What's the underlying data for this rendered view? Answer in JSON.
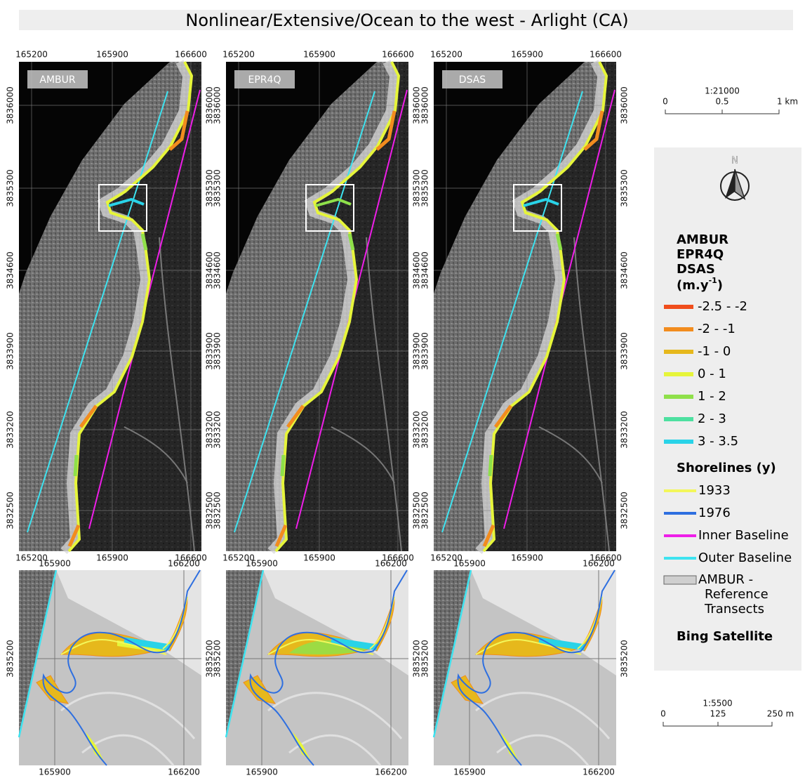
{
  "title": "Nonlinear/Extensive/Ocean to the west - Arlight (CA)",
  "panels": [
    {
      "label": "AMBUR"
    },
    {
      "label": "EPR4Q"
    },
    {
      "label": "DSAS"
    }
  ],
  "overview_axes": {
    "x_ticks": [
      "165200",
      "165900",
      "166600"
    ],
    "y_ticks": [
      "3836000",
      "3835300",
      "3834600",
      "3833900",
      "3833200",
      "3832500"
    ]
  },
  "detail_axes": {
    "x_ticks": [
      "165900",
      "166200"
    ],
    "y_ticks": [
      "3835200"
    ]
  },
  "scale_overview": {
    "ratio": "1:21000",
    "labels": [
      "0",
      "0.5",
      "1 km"
    ]
  },
  "north": "N",
  "legend": {
    "methods": [
      "AMBUR",
      "EPR4Q",
      "DSAS"
    ],
    "unit": "(m.y",
    "unit_sup": "-1",
    "unit_end": ")",
    "rate_classes": [
      {
        "label": "-2.5 - -2",
        "color": "#f04e1c"
      },
      {
        "label": "-2 - -1",
        "color": "#f28c1e"
      },
      {
        "label": "-1 - 0",
        "color": "#e6b81c"
      },
      {
        "label": "0 - 1",
        "color": "#e6f53a"
      },
      {
        "label": "1 - 2",
        "color": "#8fe04a"
      },
      {
        "label": "2 - 3",
        "color": "#4de0a0"
      },
      {
        "label": "3 - 3.5",
        "color": "#29d3e8"
      }
    ],
    "shorelines_title": "Shorelines (y)",
    "layers": [
      {
        "label": "1933",
        "color": "#f3f75a"
      },
      {
        "label": "1976",
        "color": "#2e6fe0"
      },
      {
        "label": "Inner Baseline",
        "color": "#ee1ee8"
      },
      {
        "label": "Outer Baseline",
        "color": "#3de3f0"
      }
    ],
    "transects": {
      "lines": [
        "AMBUR -",
        "Reference",
        "Transects"
      ],
      "color": "#cfcfcf"
    },
    "basemap": "Bing Satellite"
  },
  "scale_detail": {
    "ratio": "1:5500",
    "labels": [
      "0",
      "125",
      "250 m"
    ]
  }
}
